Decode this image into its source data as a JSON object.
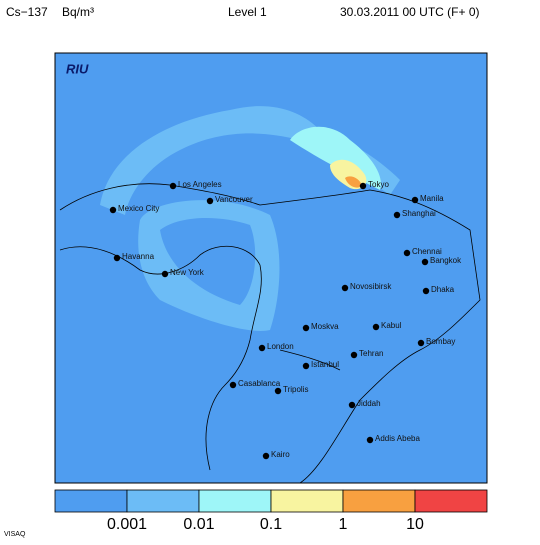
{
  "header": {
    "species": "Cs−137",
    "unit": "Bq/m³",
    "level": "Level  1",
    "time": "30.03.2011 00 UTC (F+ 0)"
  },
  "logo": "RIU",
  "cities": [
    "Los Angeles",
    "Mexico City",
    "Vancouver",
    "Tokyo",
    "Manila",
    "Shanghai",
    "Havanna",
    "New York",
    "Chennai",
    "Bangkok",
    "Novosibirsk",
    "Dhaka",
    "Moskva",
    "Kabul",
    "Bombay",
    "London",
    "Tehran",
    "Istanbul",
    "Casablanca",
    "Tripolis",
    "Jiddah",
    "Addis Abeba",
    "Kairo"
  ],
  "legend": {
    "colors": [
      "#4f9df0",
      "#6cbcf6",
      "#9ef6f8",
      "#f8f4a0",
      "#f8a040",
      "#f04444"
    ],
    "labels": [
      "0.001",
      "0.01",
      "0.1",
      "1",
      "10"
    ]
  },
  "footer": "VISAQ"
}
